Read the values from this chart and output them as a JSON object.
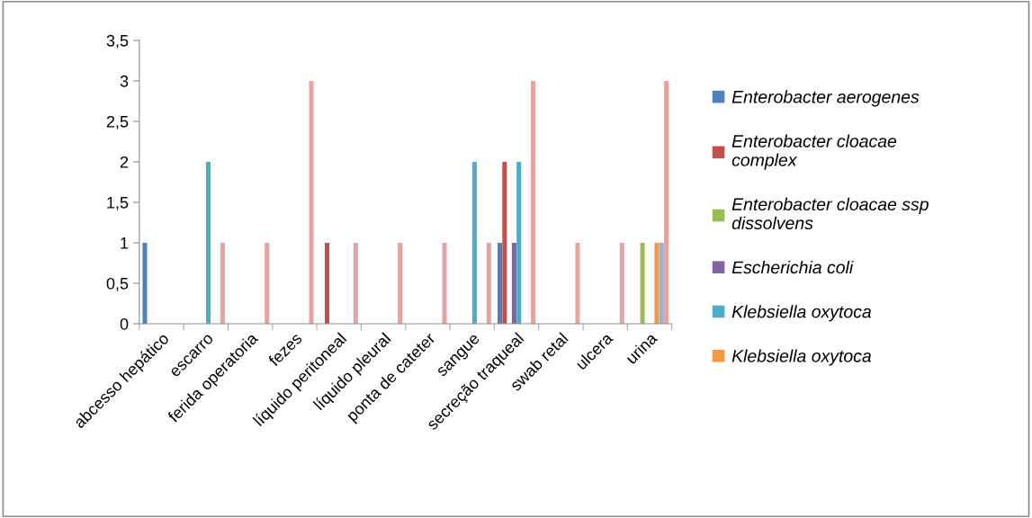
{
  "chart_data": {
    "type": "bar",
    "categories": [
      "abcesso hepático",
      "escarro",
      "ferida operatoria",
      "fezes",
      "líquido peritoneal",
      "líquido pleural",
      "ponta de cateter",
      "sangue",
      "secreção traqueal",
      "swab retal",
      "ulcera",
      "urina"
    ],
    "series": [
      {
        "name": "Enterobacter aerogenes",
        "color": "#4f81bd",
        "values": [
          1,
          null,
          null,
          null,
          null,
          null,
          null,
          null,
          1,
          null,
          null,
          null
        ]
      },
      {
        "name": "Enterobacter cloacae complex",
        "color": "#c0504d",
        "values": [
          null,
          null,
          null,
          null,
          1,
          null,
          null,
          null,
          2,
          null,
          null,
          null
        ]
      },
      {
        "name": "Enterobacter cloacae ssp dissolvens",
        "color": "#9bbb59",
        "values": [
          null,
          null,
          null,
          null,
          null,
          null,
          null,
          null,
          null,
          null,
          null,
          1
        ]
      },
      {
        "name": "Escherichia coli",
        "color": "#8064a2",
        "values": [
          null,
          null,
          null,
          null,
          null,
          null,
          null,
          null,
          1,
          null,
          null,
          null
        ]
      },
      {
        "name": "Klebsiella oxytoca",
        "color": "#4bacc6",
        "values": [
          null,
          2,
          null,
          null,
          null,
          null,
          null,
          2,
          2,
          null,
          null,
          null
        ]
      },
      {
        "name": "Klebsiella oxytoca",
        "color": "#f79646",
        "values": [
          null,
          null,
          null,
          null,
          null,
          null,
          null,
          null,
          null,
          null,
          null,
          1
        ]
      },
      {
        "color": "#95b3d7",
        "values": [
          null,
          null,
          null,
          null,
          null,
          null,
          null,
          null,
          null,
          null,
          null,
          1
        ]
      },
      {
        "color": "#e6a3a1",
        "values": [
          null,
          1,
          1,
          3,
          1,
          1,
          1,
          1,
          3,
          1,
          1,
          3
        ]
      }
    ],
    "ylim": [
      0,
      3.5
    ],
    "yticks": [
      0,
      {
        "value": 0.5,
        "label": "0,5"
      },
      1,
      {
        "value": 1.5,
        "label": "1,5"
      },
      2,
      {
        "value": 2.5,
        "label": "2,5"
      },
      3,
      {
        "value": 3.5,
        "label": "3,5"
      }
    ],
    "grid": false,
    "legend": "right"
  }
}
